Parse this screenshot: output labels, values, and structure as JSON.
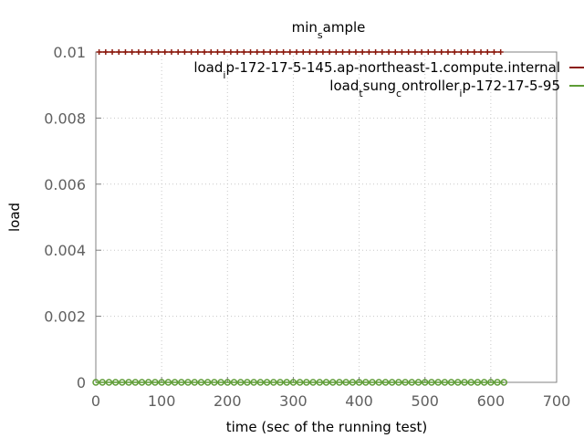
{
  "chart_data": {
    "type": "line",
    "title": {
      "base": "min",
      "sub": "s",
      "rest": "ample"
    },
    "xlabel": "time (sec of the running test)",
    "ylabel": "load",
    "xlim": [
      0,
      700
    ],
    "ylim": [
      0,
      0.01
    ],
    "x_ticks": [
      0,
      100,
      200,
      300,
      400,
      500,
      600,
      700
    ],
    "y_ticks": [
      "0",
      "0.002",
      "0.004",
      "0.006",
      "0.008",
      "0.01"
    ],
    "grid": true,
    "legend_position": "top-right",
    "series": [
      {
        "name_parts": [
          {
            "t": "load"
          },
          {
            "t": "i",
            "sub": true
          },
          {
            "t": "p-172-17-5-145.ap-northeast-1.compute.internal"
          }
        ],
        "color": "#8b1a0e",
        "marker": "plus",
        "x_start": 5,
        "x_end": 615,
        "x_step": 10,
        "value": 0.01
      },
      {
        "name_parts": [
          {
            "t": "load"
          },
          {
            "t": "t",
            "sub": true
          },
          {
            "t": "sung"
          },
          {
            "t": "c",
            "sub": true
          },
          {
            "t": "ontroller"
          },
          {
            "t": "i",
            "sub": true
          },
          {
            "t": "p-172-17-5-95"
          }
        ],
        "color": "#5e9c36",
        "marker": "circle",
        "x_start": 0,
        "x_end": 620,
        "x_step": 10,
        "value": 0
      }
    ]
  }
}
